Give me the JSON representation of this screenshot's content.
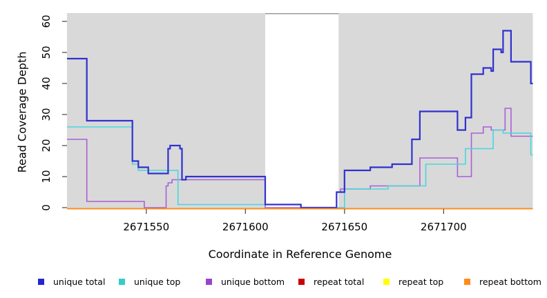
{
  "chart_data": {
    "type": "line",
    "subtype": "step",
    "title": "",
    "xlabel": "Coordinate in Reference Genome",
    "ylabel": "Read Coverage Depth",
    "xlim": [
      2671510,
      2671745
    ],
    "ylim": [
      0,
      62
    ],
    "x_tick_values": [
      2671550,
      2671600,
      2671650,
      2671700
    ],
    "x_tick_labels": [
      "2671550",
      "2671600",
      "2671650",
      "2671700"
    ],
    "y_tick_values": [
      0,
      10,
      20,
      30,
      40,
      50,
      60
    ],
    "y_tick_labels": [
      "0",
      "10",
      "20",
      "30",
      "40",
      "50",
      "60"
    ],
    "panel_background": "#d9d9d9",
    "no_data_region": [
      2671610,
      2671647
    ],
    "grid": false,
    "legend_position": "bottom",
    "series": [
      {
        "name": "unique bottom",
        "color": "#a95fd5",
        "width": 1.6,
        "breakpoints": [
          [
            2671510,
            22
          ],
          [
            2671520,
            2
          ],
          [
            2671549,
            0
          ],
          [
            2671560,
            7
          ],
          [
            2671561,
            8
          ],
          [
            2671563,
            9
          ],
          [
            2671610,
            0
          ],
          [
            2671646,
            5
          ],
          [
            2671648,
            6
          ],
          [
            2671663,
            7
          ],
          [
            2671688,
            16
          ],
          [
            2671707,
            10
          ],
          [
            2671714,
            24
          ],
          [
            2671720,
            26
          ],
          [
            2671724,
            25
          ],
          [
            2671731,
            32
          ],
          [
            2671734,
            23
          ]
        ]
      },
      {
        "name": "unique top",
        "color": "#45d8dd",
        "width": 1.6,
        "breakpoints": [
          [
            2671510,
            26
          ],
          [
            2671543,
            14
          ],
          [
            2671546,
            12
          ],
          [
            2671566,
            1
          ],
          [
            2671628,
            0
          ],
          [
            2671650,
            6
          ],
          [
            2671672,
            7
          ],
          [
            2671691,
            14
          ],
          [
            2671711,
            19
          ],
          [
            2671725,
            25
          ],
          [
            2671730,
            24
          ],
          [
            2671744,
            17
          ]
        ]
      },
      {
        "name": "unique total",
        "color": "#3030cf",
        "width": 2.2,
        "breakpoints": [
          [
            2671510,
            48
          ],
          [
            2671520,
            28
          ],
          [
            2671543,
            15
          ],
          [
            2671546,
            13
          ],
          [
            2671551,
            11
          ],
          [
            2671561,
            19
          ],
          [
            2671562,
            20
          ],
          [
            2671567,
            19
          ],
          [
            2671568,
            9
          ],
          [
            2671570,
            10
          ],
          [
            2671610,
            1
          ],
          [
            2671628,
            0
          ],
          [
            2671646,
            5
          ],
          [
            2671650,
            12
          ],
          [
            2671663,
            13
          ],
          [
            2671674,
            14
          ],
          [
            2671684,
            22
          ],
          [
            2671688,
            31
          ],
          [
            2671707,
            25
          ],
          [
            2671711,
            29
          ],
          [
            2671714,
            43
          ],
          [
            2671720,
            45
          ],
          [
            2671724,
            44
          ],
          [
            2671725,
            51
          ],
          [
            2671729,
            50
          ],
          [
            2671730,
            57
          ],
          [
            2671734,
            47
          ],
          [
            2671744,
            40
          ]
        ]
      },
      {
        "name": "repeat total",
        "color": "#cc0000",
        "width": 1.5,
        "breakpoints": [
          [
            2671510,
            0
          ]
        ]
      },
      {
        "name": "repeat top",
        "color": "#ffff00",
        "width": 1.5,
        "breakpoints": [
          [
            2671510,
            0
          ]
        ]
      },
      {
        "name": "repeat bottom",
        "color": "#ff8c1a",
        "width": 2,
        "breakpoints": [
          [
            2671510,
            0
          ]
        ]
      }
    ],
    "legend": [
      {
        "label": "unique total",
        "color": "#2626cc"
      },
      {
        "label": "unique top",
        "color": "#33cccc"
      },
      {
        "label": "unique bottom",
        "color": "#9944cc"
      },
      {
        "label": "repeat total",
        "color": "#cc0000"
      },
      {
        "label": "repeat top",
        "color": "#ffff00"
      },
      {
        "label": "repeat bottom",
        "color": "#ff8c1a"
      }
    ]
  }
}
